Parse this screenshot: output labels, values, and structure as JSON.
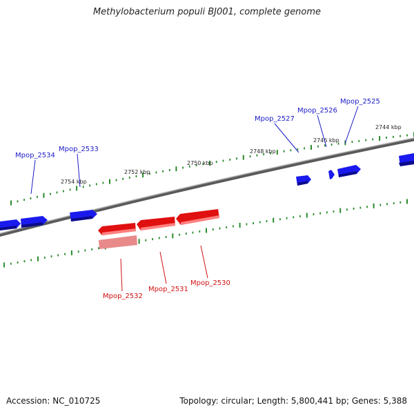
{
  "title": "Methylobacterium populi BJ001, complete genome",
  "footer": {
    "accession": "Accession: NC_010725",
    "summary": "Topology: circular; Length: 5,800,441 bp; Genes: 5,388"
  },
  "colors": {
    "forward_gene": "#1a1aee",
    "reverse_gene": "#e01010",
    "reverse_gene_faded": "#e88a8a",
    "tick": "#2a8a2a",
    "backbone": "#808080",
    "label_forward": "#1a1ac8",
    "label_reverse": "#d01010"
  },
  "scale_labels": [
    "2744 kbp",
    "2746 kbp",
    "2748 kbp",
    "2750 kbp",
    "2752 kbp",
    "2754 kbp"
  ],
  "genes_forward": [
    {
      "name": "Mpop_2525",
      "icon": "gene-arrow"
    },
    {
      "name": "Mpop_2526",
      "icon": "gene-arrow"
    },
    {
      "name": "Mpop_2527",
      "icon": "gene-arrow"
    },
    {
      "name": "Mpop_2533",
      "icon": "gene-arrow"
    },
    {
      "name": "Mpop_2534",
      "icon": "gene-arrow"
    }
  ],
  "genes_reverse": [
    {
      "name": "Mpop_2530",
      "icon": "gene-arrow"
    },
    {
      "name": "Mpop_2531",
      "icon": "gene-arrow"
    },
    {
      "name": "Mpop_2532",
      "icon": "gene-arrow"
    }
  ]
}
